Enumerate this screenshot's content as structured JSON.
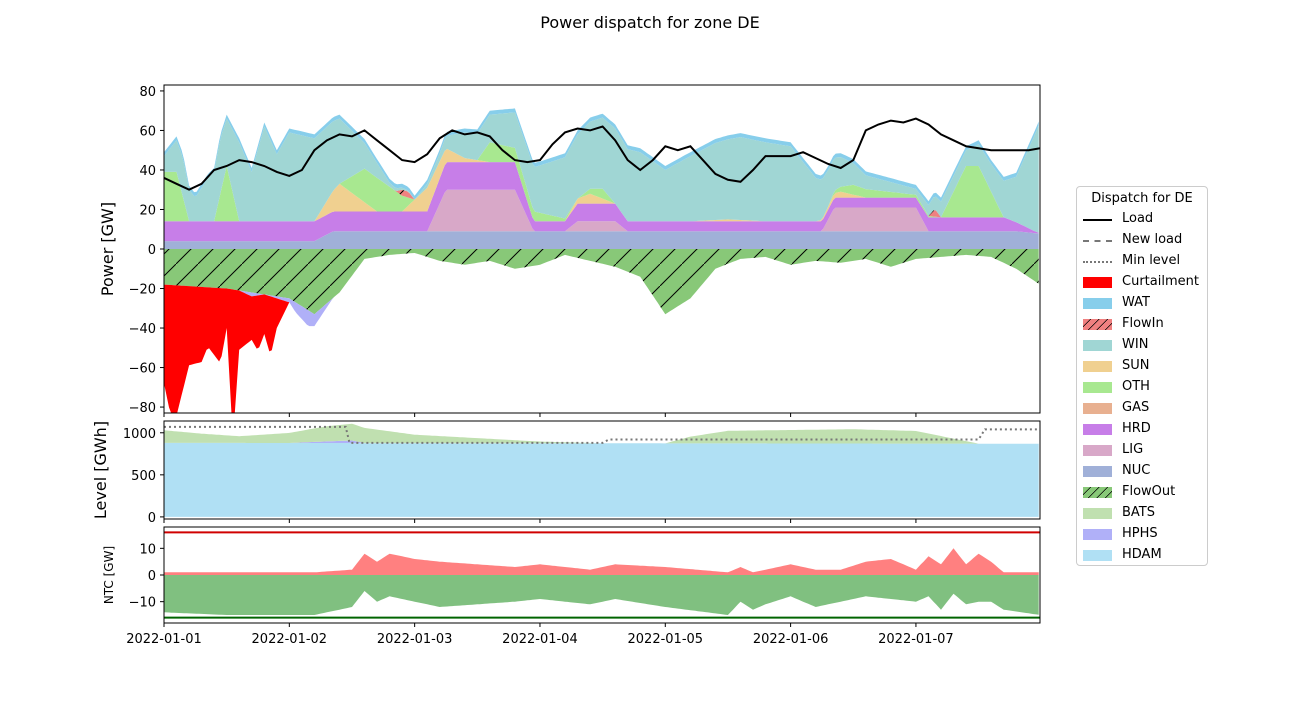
{
  "title": "Power dispatch for zone DE",
  "colors": {
    "Load": "#000000",
    "Curtailment": "#ff0000",
    "WAT": "#87ceeb",
    "FlowIn": "#f08080",
    "WIN": "#a0d6d4",
    "SUN": "#f0d090",
    "OTH": "#a8e890",
    "GAS": "#e8b090",
    "HRD": "#c77ee8",
    "LIG": "#d8a8c8",
    "NUC": "#a0b0d8",
    "FlowOut": "#88c878",
    "BATS": "#c0e0b0",
    "HPHS": "#b0b0f8",
    "HDAM": "#b0e0f4",
    "NTC_import": "#ff8080",
    "NTC_export": "#80c080",
    "NTC_max": "#d00000",
    "NTC_min": "#006400"
  },
  "legend": {
    "title": "Dispatch for DE",
    "items": [
      {
        "label": "Load",
        "kind": "line",
        "style": "solid",
        "color": "#000000"
      },
      {
        "label": "New load",
        "kind": "line",
        "style": "dashed",
        "color": "#777777"
      },
      {
        "label": "Min level",
        "kind": "line",
        "style": "dotted",
        "color": "#777777"
      },
      {
        "label": "Curtailment",
        "kind": "patch",
        "color": "#ff0000"
      },
      {
        "label": "WAT",
        "kind": "patch",
        "color": "#87ceeb"
      },
      {
        "label": "FlowIn",
        "kind": "patch",
        "color": "#f08080",
        "hatch": true
      },
      {
        "label": "WIN",
        "kind": "patch",
        "color": "#a0d6d4"
      },
      {
        "label": "SUN",
        "kind": "patch",
        "color": "#f0d090"
      },
      {
        "label": "OTH",
        "kind": "patch",
        "color": "#a8e890"
      },
      {
        "label": "GAS",
        "kind": "patch",
        "color": "#e8b090"
      },
      {
        "label": "HRD",
        "kind": "patch",
        "color": "#c77ee8"
      },
      {
        "label": "LIG",
        "kind": "patch",
        "color": "#d8a8c8"
      },
      {
        "label": "NUC",
        "kind": "patch",
        "color": "#a0b0d8"
      },
      {
        "label": "FlowOut",
        "kind": "patch",
        "color": "#88c878",
        "hatch": true
      },
      {
        "label": "BATS",
        "kind": "patch",
        "color": "#c0e0b0"
      },
      {
        "label": "HPHS",
        "kind": "patch",
        "color": "#b0b0f8"
      },
      {
        "label": "HDAM",
        "kind": "patch",
        "color": "#b0e0f4"
      }
    ]
  },
  "chart_data": [
    {
      "type": "area",
      "panel": "power",
      "ylabel": "Power [GW]",
      "ylim": [
        -83,
        83
      ],
      "yticks": [
        -80,
        -60,
        -40,
        -20,
        0,
        20,
        40,
        60,
        80
      ],
      "xlim": [
        "2022-01-01 00:00",
        "2022-01-07 23:00"
      ],
      "stacks_positive": [
        {
          "name": "NUC",
          "x": [
            0,
            1.2,
            1.35,
            6.8,
            6.95,
            6.99
          ],
          "y": [
            4,
            4,
            9,
            9,
            8,
            8
          ]
        },
        {
          "name": "LIG",
          "x": [
            0,
            1.2,
            1.35,
            2.1,
            2.25,
            2.8,
            2.95,
            3.2,
            3.3,
            3.6,
            3.7,
            4.2,
            4.3,
            5.25,
            5.35,
            6.0,
            6.1,
            6.99
          ],
          "y": [
            0,
            0,
            0,
            0,
            21,
            21,
            0,
            0,
            5,
            5,
            0,
            0,
            0,
            0,
            12,
            12,
            0,
            0
          ]
        },
        {
          "name": "HRD",
          "x": [
            0,
            1.2,
            1.35,
            2.1,
            2.25,
            2.8,
            2.95,
            3.2,
            3.3,
            3.6,
            3.7,
            4.2,
            4.3,
            5.25,
            5.35,
            6.0,
            6.1,
            6.7,
            6.99
          ],
          "y": [
            10,
            10,
            10,
            10,
            14,
            14,
            5,
            5,
            9,
            9,
            5,
            5,
            5,
            5,
            5,
            5,
            7,
            7,
            0
          ]
        },
        {
          "name": "SUN",
          "x": [
            0,
            1.2,
            1.4,
            1.7,
            1.9,
            2.1,
            2.4,
            2.6,
            2.8,
            3.2,
            3.4,
            3.6,
            4.2,
            4.5,
            4.8,
            5.2,
            5.4,
            5.6,
            5.8,
            6.2,
            6.5,
            6.8,
            6.99
          ],
          "y": [
            0,
            0,
            14,
            0,
            0,
            12,
            2,
            0,
            0,
            0,
            5,
            0,
            0,
            1,
            0,
            0,
            3,
            0,
            0,
            0,
            0,
            0,
            0
          ]
        },
        {
          "name": "OTH",
          "x": [
            0,
            0.1,
            0.2,
            0.4,
            0.5,
            0.6,
            1.4,
            1.6,
            1.7,
            1.9,
            2.0,
            2.5,
            2.6,
            3.3,
            3.5,
            3.6,
            5.3,
            5.5,
            6.2,
            6.4,
            6.5,
            6.7,
            6.99
          ],
          "y": [
            25,
            25,
            0,
            0,
            28,
            0,
            0,
            17,
            17,
            8,
            0,
            0,
            10,
            0,
            5,
            0,
            0,
            5,
            0,
            26,
            26,
            0,
            0
          ]
        },
        {
          "name": "FlowIn",
          "x": [
            0,
            1.85,
            1.9,
            1.95,
            2.0,
            6.1,
            6.15,
            6.2,
            6.99
          ],
          "y": [
            0,
            0,
            3,
            3,
            0,
            0,
            4,
            0,
            0
          ]
        },
        {
          "name": "WIN",
          "x": [
            0,
            0.15,
            0.25,
            0.35,
            0.45,
            0.5,
            0.6,
            0.7,
            0.8,
            0.9,
            1.0,
            1.2,
            1.4,
            1.6,
            1.8,
            2.0,
            2.2,
            2.4,
            2.6,
            2.8,
            3.0,
            3.2,
            3.4,
            3.6,
            3.8,
            4.0,
            4.2,
            4.4,
            4.6,
            4.8,
            5.0,
            5.2,
            5.4,
            5.6,
            5.8,
            6.0,
            6.2,
            6.4,
            6.6,
            6.8,
            6.99
          ],
          "y": [
            8,
            20,
            12,
            22,
            28,
            24,
            40,
            25,
            48,
            34,
            45,
            42,
            33,
            13,
            2,
            0,
            4,
            13,
            14,
            18,
            24,
            31,
            34,
            38,
            35,
            26,
            33,
            39,
            42,
            40,
            38,
            22,
            15,
            7,
            5,
            3,
            8,
            8,
            14,
            23,
            56
          ]
        },
        {
          "name": "WAT",
          "x": [
            0,
            6.99
          ],
          "y": [
            2,
            2
          ]
        }
      ],
      "stacks_negative": [
        {
          "name": "FlowOut",
          "x": [
            0,
            0.5,
            1.0,
            1.2,
            1.4,
            1.6,
            1.8,
            2.0,
            2.2,
            2.4,
            2.6,
            2.8,
            3.0,
            3.2,
            3.4,
            3.6,
            3.8,
            4.0,
            4.2,
            4.4,
            4.6,
            4.8,
            5.0,
            5.2,
            5.4,
            5.6,
            5.8,
            6.0,
            6.2,
            6.4,
            6.6,
            6.8,
            6.99
          ],
          "y": [
            -18,
            -20,
            -25,
            -33,
            -22,
            -5,
            -3,
            -2,
            -6,
            -8,
            -6,
            -10,
            -8,
            -3,
            -6,
            -9,
            -14,
            -33,
            -25,
            -10,
            -5,
            -4,
            -8,
            -6,
            -7,
            -5,
            -9,
            -5,
            -4,
            -3,
            -4,
            -10,
            -18
          ]
        },
        {
          "name": "HPHS",
          "x": [
            0,
            0.6,
            0.7,
            0.8,
            1.0,
            1.05,
            1.15,
            1.3,
            1.35,
            6.99
          ],
          "y": [
            0,
            0,
            -2,
            0,
            -2,
            -5,
            -8,
            -2,
            0,
            0
          ]
        },
        {
          "name": "Curtailment",
          "x": [
            0,
            0.05,
            0.1,
            0.2,
            0.3,
            0.35,
            0.45,
            0.5,
            0.55,
            0.6,
            0.7,
            0.75,
            0.8,
            0.85,
            0.9,
            1.0,
            6.99
          ],
          "y": [
            -50,
            -65,
            -66,
            -40,
            -38,
            -30,
            -38,
            -20,
            -76,
            -30,
            -22,
            -28,
            -20,
            -30,
            -15,
            0,
            0
          ]
        }
      ],
      "line": {
        "name": "Load",
        "x": [
          0,
          0.1,
          0.2,
          0.3,
          0.4,
          0.5,
          0.6,
          0.7,
          0.8,
          0.9,
          1.0,
          1.1,
          1.2,
          1.3,
          1.4,
          1.5,
          1.6,
          1.7,
          1.8,
          1.9,
          2.0,
          2.1,
          2.2,
          2.3,
          2.4,
          2.5,
          2.6,
          2.7,
          2.8,
          2.9,
          3.0,
          3.1,
          3.2,
          3.3,
          3.4,
          3.5,
          3.6,
          3.7,
          3.8,
          3.9,
          4.0,
          4.1,
          4.2,
          4.3,
          4.4,
          4.5,
          4.6,
          4.7,
          4.8,
          4.9,
          5.0,
          5.1,
          5.2,
          5.3,
          5.4,
          5.5,
          5.6,
          5.7,
          5.8,
          5.9,
          6.0,
          6.1,
          6.2,
          6.3,
          6.4,
          6.5,
          6.6,
          6.7,
          6.8,
          6.9,
          6.99
        ],
        "y": [
          36,
          33,
          30,
          33,
          40,
          42,
          45,
          44,
          42,
          39,
          37,
          40,
          50,
          55,
          58,
          57,
          60,
          55,
          50,
          45,
          44,
          48,
          56,
          60,
          58,
          59,
          57,
          50,
          45,
          44,
          45,
          53,
          59,
          61,
          60,
          62,
          55,
          45,
          40,
          45,
          52,
          50,
          52,
          45,
          38,
          35,
          34,
          40,
          47,
          47,
          47,
          49,
          46,
          43,
          41,
          45,
          60,
          63,
          65,
          64,
          66,
          63,
          58,
          55,
          52,
          51,
          50,
          50,
          50,
          50,
          51
        ]
      }
    },
    {
      "type": "area",
      "panel": "level",
      "ylabel": "Level [GWh]",
      "ylim": [
        -25,
        1140
      ],
      "yticks": [
        0,
        500,
        1000
      ],
      "stacks": [
        {
          "name": "HDAM",
          "x": [
            0,
            6.99
          ],
          "y": [
            880,
            870
          ]
        },
        {
          "name": "HPHS",
          "x": [
            0,
            1.0,
            1.3,
            1.5,
            1.6,
            6.99
          ],
          "y": [
            0,
            0,
            20,
            30,
            0,
            0
          ]
        },
        {
          "name": "BATS",
          "x": [
            0,
            0.3,
            0.6,
            1.0,
            1.3,
            1.5,
            1.7,
            2.0,
            2.5,
            3.0,
            3.5,
            4.0,
            4.2,
            4.5,
            5.0,
            5.5,
            6.0,
            6.5,
            6.99
          ],
          "y": [
            150,
            110,
            80,
            120,
            180,
            200,
            160,
            100,
            60,
            20,
            0,
            0,
            80,
            150,
            160,
            170,
            150,
            0,
            0
          ]
        }
      ],
      "line": {
        "name": "Min level",
        "x": [
          0,
          1.45,
          1.48,
          3.5,
          3.55,
          6.5,
          6.55,
          6.99
        ],
        "y": [
          1070,
          1070,
          880,
          880,
          920,
          920,
          1040,
          1040
        ]
      }
    },
    {
      "type": "area",
      "panel": "ntc",
      "ylabel": "NTC [GW]",
      "ylim": [
        -18,
        18
      ],
      "yticks": [
        -10,
        0,
        10
      ],
      "import": {
        "name": "NTC_import",
        "x": [
          0,
          0.5,
          1.0,
          1.2,
          1.5,
          1.6,
          1.7,
          1.8,
          2.0,
          2.2,
          2.5,
          2.8,
          3.0,
          3.4,
          3.6,
          4.0,
          4.5,
          4.6,
          4.7,
          4.8,
          5.0,
          5.2,
          5.4,
          5.6,
          5.8,
          6.0,
          6.1,
          6.2,
          6.3,
          6.4,
          6.5,
          6.6,
          6.7,
          6.99
        ],
        "y": [
          1,
          1,
          1,
          1,
          2,
          8,
          5,
          8,
          6,
          5,
          4,
          3,
          4,
          2,
          4,
          3,
          1,
          3,
          1,
          2,
          4,
          2,
          2,
          5,
          6,
          2,
          7,
          4,
          10,
          4,
          8,
          5,
          1,
          1
        ]
      },
      "export": {
        "name": "NTC_export",
        "x": [
          0,
          0.5,
          1.0,
          1.2,
          1.5,
          1.6,
          1.7,
          1.8,
          2.0,
          2.2,
          2.5,
          2.8,
          3.0,
          3.4,
          3.6,
          4.0,
          4.5,
          4.6,
          4.7,
          4.8,
          5.0,
          5.2,
          5.4,
          5.6,
          5.8,
          6.0,
          6.1,
          6.2,
          6.3,
          6.4,
          6.5,
          6.6,
          6.7,
          6.99
        ],
        "y": [
          -14,
          -15,
          -15,
          -15,
          -12,
          -6,
          -10,
          -8,
          -10,
          -12,
          -11,
          -10,
          -9,
          -11,
          -9,
          -12,
          -15,
          -10,
          -13,
          -11,
          -8,
          -12,
          -10,
          -8,
          -9,
          -10,
          -8,
          -13,
          -7,
          -11,
          -10,
          -10,
          -13,
          -15
        ]
      },
      "max": {
        "name": "NTC_max",
        "value": 16
      },
      "min": {
        "name": "NTC_min",
        "value": -16
      }
    }
  ],
  "xticks": [
    "2022-01-01",
    "2022-01-02",
    "2022-01-03",
    "2022-01-04",
    "2022-01-05",
    "2022-01-06",
    "2022-01-07"
  ]
}
